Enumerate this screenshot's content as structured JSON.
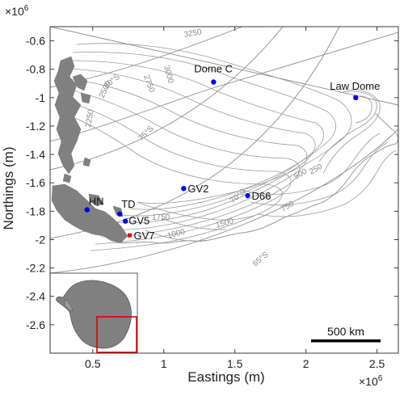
{
  "exponent_y": "×10",
  "exponent_y_sup": "6",
  "exponent_x": "×10",
  "exponent_x_sup": "6",
  "y_axis_label": "Northings (m)",
  "x_axis_label": "Eastings (m)",
  "y_ticks": [
    {
      "value": -0.6,
      "label": "-0.6"
    },
    {
      "value": -0.8,
      "label": "-0.8"
    },
    {
      "value": -1.0,
      "label": "-1"
    },
    {
      "value": -1.2,
      "label": "-1.2"
    },
    {
      "value": -1.4,
      "label": "-1.4"
    },
    {
      "value": -1.6,
      "label": "-1.6"
    },
    {
      "value": -1.8,
      "label": "-1.8"
    },
    {
      "value": -2.0,
      "label": "-2"
    },
    {
      "value": -2.2,
      "label": "-2.2"
    },
    {
      "value": -2.4,
      "label": "-2.4"
    },
    {
      "value": -2.6,
      "label": "-2.6"
    }
  ],
  "x_ticks": [
    {
      "value": 0.5,
      "label": "0.5"
    },
    {
      "value": 1.0,
      "label": "1"
    },
    {
      "value": 1.5,
      "label": "1.5"
    },
    {
      "value": 2.0,
      "label": "2"
    },
    {
      "value": 2.5,
      "label": "2.5"
    }
  ],
  "axis_range": {
    "x": [
      0.2,
      2.65
    ],
    "y": [
      -2.8,
      -0.5
    ]
  },
  "stations": [
    {
      "name": "Dome C",
      "x": 1.35,
      "y": -0.89,
      "color": "#0000ee",
      "marker": "circle"
    },
    {
      "name": "Law Dome",
      "x": 2.35,
      "y": -1.0,
      "color": "#0000ee",
      "marker": "circle"
    },
    {
      "name": "GV2",
      "x": 1.14,
      "y": -1.64,
      "color": "#0000ee",
      "marker": "circle"
    },
    {
      "name": "D66",
      "x": 1.59,
      "y": -1.69,
      "color": "#0000ee",
      "marker": "circle"
    },
    {
      "name": "HN",
      "x": 0.46,
      "y": -1.79,
      "color": "#0000ee",
      "marker": "circle"
    },
    {
      "name": "TD",
      "x": 0.69,
      "y": -1.82,
      "color": "#0000ee",
      "marker": "circle"
    },
    {
      "name": "GV5",
      "x": 0.73,
      "y": -1.87,
      "color": "#0000ee",
      "marker": "circle"
    },
    {
      "name": "GV7",
      "x": 0.76,
      "y": -1.97,
      "color": "#ee0000",
      "marker": "square"
    }
  ],
  "contour_labels": [
    "3250",
    "3000",
    "2750",
    "2500",
    "2250",
    "1750",
    "1500",
    "1000",
    "500",
    "750",
    "250",
    "1750",
    "1750"
  ],
  "latitude_labels": [
    "80°S",
    "75°S",
    "70°S",
    "65°S"
  ],
  "scale_bar": {
    "label": "500 km"
  },
  "colors": {
    "station": "#0000ee",
    "station_highlight": "#ee0000",
    "inset_box": "#dd0000",
    "land": "#777777"
  }
}
